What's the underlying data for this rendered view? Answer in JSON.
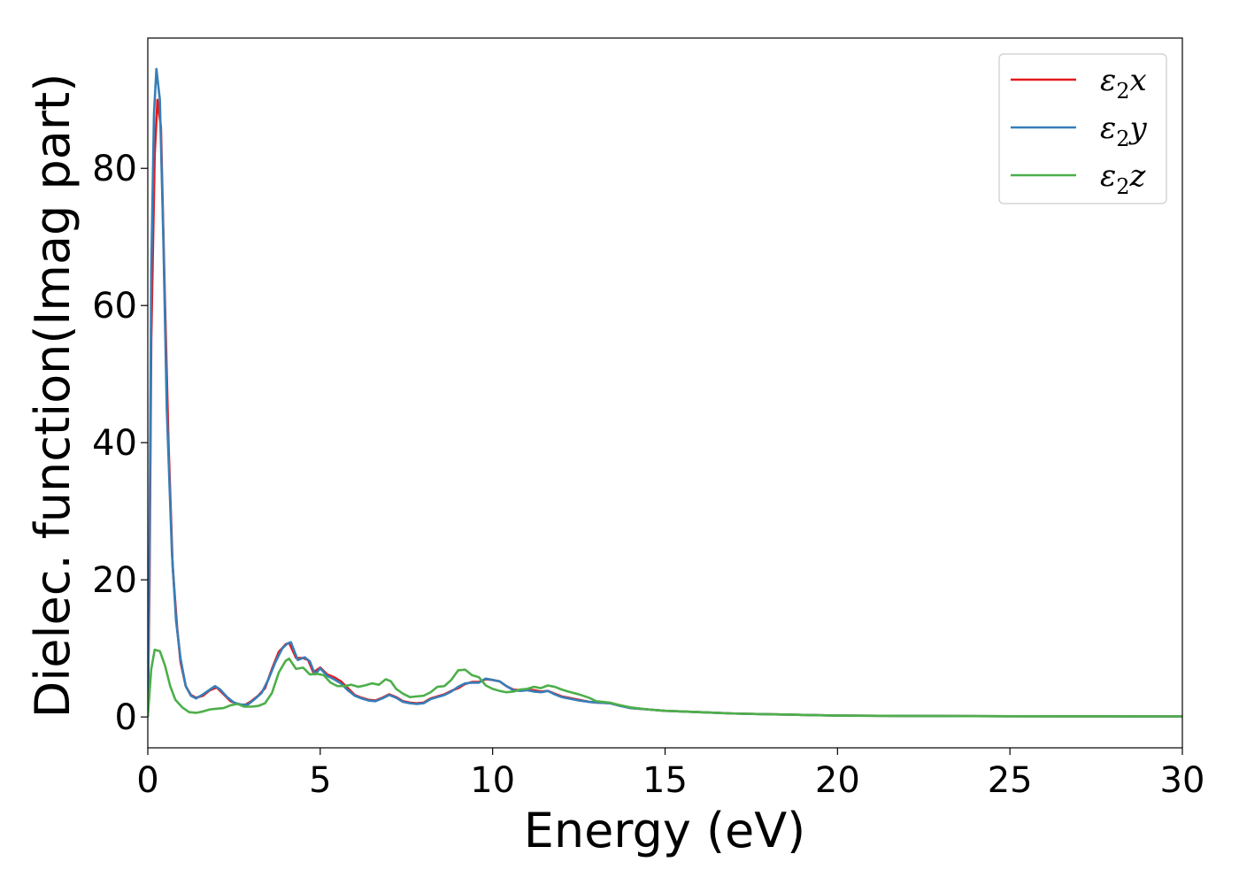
{
  "chart_data": {
    "type": "line",
    "title": "",
    "xlabel": "Energy (eV)",
    "ylabel": "Dielec. function(Imag part)",
    "xlim": [
      0,
      30
    ],
    "ylim": [
      -4.5,
      99
    ],
    "xticks": [
      0,
      5,
      10,
      15,
      20,
      25,
      30
    ],
    "yticks": [
      0,
      20,
      40,
      60,
      80
    ],
    "grid": false,
    "legend_position": "top-right",
    "series": [
      {
        "name": "ε2x",
        "legend": {
          "symbol": "ε",
          "sub": "2",
          "axis": "x"
        },
        "color": "#e41a1c",
        "points": [
          [
            0,
            0
          ],
          [
            0.05,
            20
          ],
          [
            0.1,
            55
          ],
          [
            0.2,
            82
          ],
          [
            0.28,
            90
          ],
          [
            0.38,
            86
          ],
          [
            0.5,
            60
          ],
          [
            0.6,
            40
          ],
          [
            0.72,
            22
          ],
          [
            0.85,
            13
          ],
          [
            0.95,
            8
          ],
          [
            1.1,
            4.5
          ],
          [
            1.25,
            3.2
          ],
          [
            1.4,
            2.8
          ],
          [
            1.6,
            3.1
          ],
          [
            1.8,
            3.9
          ],
          [
            2.0,
            4.3
          ],
          [
            2.2,
            3.3
          ],
          [
            2.4,
            2.3
          ],
          [
            2.6,
            1.9
          ],
          [
            2.8,
            1.7
          ],
          [
            3.0,
            2.3
          ],
          [
            3.2,
            3.1
          ],
          [
            3.4,
            4.2
          ],
          [
            3.6,
            7
          ],
          [
            3.8,
            9.5
          ],
          [
            4.0,
            10.6
          ],
          [
            4.1,
            10.8
          ],
          [
            4.3,
            8.6
          ],
          [
            4.5,
            8.6
          ],
          [
            4.65,
            8.3
          ],
          [
            4.8,
            6.5
          ],
          [
            5.0,
            7.2
          ],
          [
            5.2,
            6.2
          ],
          [
            5.4,
            5.8
          ],
          [
            5.6,
            5.2
          ],
          [
            5.8,
            4.2
          ],
          [
            6.0,
            3.2
          ],
          [
            6.2,
            2.8
          ],
          [
            6.4,
            2.5
          ],
          [
            6.6,
            2.4
          ],
          [
            6.8,
            2.8
          ],
          [
            7.0,
            3.3
          ],
          [
            7.2,
            2.9
          ],
          [
            7.4,
            2.3
          ],
          [
            7.6,
            2.1
          ],
          [
            7.8,
            2.0
          ],
          [
            8.0,
            2.1
          ],
          [
            8.2,
            2.7
          ],
          [
            8.4,
            3.0
          ],
          [
            8.6,
            3.3
          ],
          [
            8.8,
            3.8
          ],
          [
            9.0,
            4.2
          ],
          [
            9.2,
            4.8
          ],
          [
            9.4,
            5.1
          ],
          [
            9.6,
            5.1
          ],
          [
            9.8,
            5.5
          ],
          [
            10.0,
            5.4
          ],
          [
            10.2,
            5.2
          ],
          [
            10.4,
            4.5
          ],
          [
            10.6,
            4.0
          ],
          [
            10.8,
            3.9
          ],
          [
            11.0,
            4.0
          ],
          [
            11.2,
            3.9
          ],
          [
            11.4,
            3.7
          ],
          [
            11.6,
            3.8
          ],
          [
            11.8,
            3.4
          ],
          [
            12.0,
            3.0
          ],
          [
            12.2,
            2.8
          ],
          [
            12.5,
            2.5
          ],
          [
            12.8,
            2.2
          ],
          [
            13.0,
            2.1
          ],
          [
            13.4,
            2.0
          ],
          [
            13.7,
            1.7
          ],
          [
            14.0,
            1.3
          ],
          [
            14.5,
            1.1
          ],
          [
            15.0,
            0.9
          ],
          [
            15.5,
            0.8
          ],
          [
            16.0,
            0.7
          ],
          [
            17.0,
            0.5
          ],
          [
            18.0,
            0.4
          ],
          [
            19.0,
            0.3
          ],
          [
            20.0,
            0.2
          ],
          [
            22.0,
            0.15
          ],
          [
            25.0,
            0.1
          ],
          [
            30.0,
            0.08
          ]
        ]
      },
      {
        "name": "ε2y",
        "legend": {
          "symbol": "ε",
          "sub": "2",
          "axis": "y"
        },
        "color": "#377eb8",
        "points": [
          [
            0,
            0
          ],
          [
            0.05,
            25
          ],
          [
            0.1,
            65
          ],
          [
            0.18,
            88
          ],
          [
            0.25,
            94.5
          ],
          [
            0.35,
            90
          ],
          [
            0.45,
            70
          ],
          [
            0.55,
            45
          ],
          [
            0.7,
            24
          ],
          [
            0.82,
            14
          ],
          [
            0.95,
            8.5
          ],
          [
            1.1,
            4.5
          ],
          [
            1.25,
            3.1
          ],
          [
            1.4,
            2.7
          ],
          [
            1.6,
            3.3
          ],
          [
            1.8,
            4.0
          ],
          [
            1.95,
            4.5
          ],
          [
            2.1,
            4.0
          ],
          [
            2.3,
            2.9
          ],
          [
            2.5,
            2.1
          ],
          [
            2.7,
            1.8
          ],
          [
            2.9,
            1.8
          ],
          [
            3.1,
            2.6
          ],
          [
            3.3,
            3.5
          ],
          [
            3.5,
            5.5
          ],
          [
            3.7,
            8
          ],
          [
            3.9,
            10
          ],
          [
            4.05,
            10.7
          ],
          [
            4.15,
            10.9
          ],
          [
            4.35,
            8.3
          ],
          [
            4.55,
            8.7
          ],
          [
            4.7,
            8.1
          ],
          [
            4.85,
            6.2
          ],
          [
            5.0,
            7.1
          ],
          [
            5.2,
            6.0
          ],
          [
            5.4,
            5.5
          ],
          [
            5.6,
            4.9
          ],
          [
            5.8,
            3.9
          ],
          [
            6.0,
            3.1
          ],
          [
            6.2,
            2.7
          ],
          [
            6.4,
            2.4
          ],
          [
            6.6,
            2.3
          ],
          [
            6.8,
            2.7
          ],
          [
            7.0,
            3.2
          ],
          [
            7.2,
            2.8
          ],
          [
            7.4,
            2.2
          ],
          [
            7.6,
            2.0
          ],
          [
            7.8,
            1.9
          ],
          [
            8.0,
            2.0
          ],
          [
            8.2,
            2.6
          ],
          [
            8.4,
            2.9
          ],
          [
            8.6,
            3.2
          ],
          [
            8.8,
            3.7
          ],
          [
            9.0,
            4.4
          ],
          [
            9.2,
            4.9
          ],
          [
            9.4,
            5.0
          ],
          [
            9.6,
            5.0
          ],
          [
            9.8,
            5.6
          ],
          [
            10.0,
            5.4
          ],
          [
            10.2,
            5.2
          ],
          [
            10.4,
            4.5
          ],
          [
            10.6,
            3.9
          ],
          [
            10.8,
            3.8
          ],
          [
            11.0,
            3.9
          ],
          [
            11.2,
            3.7
          ],
          [
            11.4,
            3.6
          ],
          [
            11.6,
            3.8
          ],
          [
            11.8,
            3.3
          ],
          [
            12.0,
            2.9
          ],
          [
            12.2,
            2.7
          ],
          [
            12.5,
            2.4
          ],
          [
            12.8,
            2.2
          ],
          [
            13.0,
            2.1
          ],
          [
            13.4,
            2.0
          ],
          [
            13.7,
            1.6
          ],
          [
            14.0,
            1.3
          ],
          [
            14.5,
            1.1
          ],
          [
            15.0,
            0.9
          ],
          [
            15.5,
            0.8
          ],
          [
            16.0,
            0.7
          ],
          [
            17.0,
            0.5
          ],
          [
            18.0,
            0.4
          ],
          [
            19.0,
            0.3
          ],
          [
            20.0,
            0.2
          ],
          [
            22.0,
            0.15
          ],
          [
            25.0,
            0.1
          ],
          [
            30.0,
            0.08
          ]
        ]
      },
      {
        "name": "ε2z",
        "legend": {
          "symbol": "ε",
          "sub": "2",
          "axis": "z"
        },
        "color": "#4daf4a",
        "points": [
          [
            0,
            0
          ],
          [
            0.1,
            7
          ],
          [
            0.2,
            9.8
          ],
          [
            0.35,
            9.6
          ],
          [
            0.5,
            7.5
          ],
          [
            0.65,
            4.5
          ],
          [
            0.8,
            2.5
          ],
          [
            1.0,
            1.4
          ],
          [
            1.2,
            0.7
          ],
          [
            1.4,
            0.6
          ],
          [
            1.6,
            0.8
          ],
          [
            1.8,
            1.1
          ],
          [
            2.0,
            1.2
          ],
          [
            2.2,
            1.3
          ],
          [
            2.4,
            1.7
          ],
          [
            2.6,
            1.9
          ],
          [
            2.8,
            1.5
          ],
          [
            3.0,
            1.5
          ],
          [
            3.2,
            1.6
          ],
          [
            3.4,
            2.0
          ],
          [
            3.6,
            3.5
          ],
          [
            3.8,
            6.5
          ],
          [
            4.0,
            8.2
          ],
          [
            4.1,
            8.5
          ],
          [
            4.3,
            7.0
          ],
          [
            4.5,
            7.2
          ],
          [
            4.7,
            6.2
          ],
          [
            4.9,
            6.3
          ],
          [
            5.1,
            6.1
          ],
          [
            5.3,
            5.0
          ],
          [
            5.5,
            4.5
          ],
          [
            5.7,
            4.5
          ],
          [
            5.9,
            4.7
          ],
          [
            6.1,
            4.4
          ],
          [
            6.3,
            4.6
          ],
          [
            6.5,
            4.9
          ],
          [
            6.7,
            4.7
          ],
          [
            6.9,
            5.5
          ],
          [
            7.05,
            5.2
          ],
          [
            7.2,
            4.1
          ],
          [
            7.4,
            3.4
          ],
          [
            7.6,
            2.9
          ],
          [
            7.8,
            3.0
          ],
          [
            8.0,
            3.1
          ],
          [
            8.2,
            3.6
          ],
          [
            8.4,
            4.4
          ],
          [
            8.6,
            4.5
          ],
          [
            8.8,
            5.4
          ],
          [
            9.0,
            6.8
          ],
          [
            9.2,
            6.9
          ],
          [
            9.4,
            6.1
          ],
          [
            9.6,
            5.8
          ],
          [
            9.8,
            4.6
          ],
          [
            10.0,
            4.1
          ],
          [
            10.2,
            3.8
          ],
          [
            10.4,
            3.6
          ],
          [
            10.6,
            3.7
          ],
          [
            10.8,
            4.0
          ],
          [
            11.0,
            4.1
          ],
          [
            11.2,
            4.4
          ],
          [
            11.4,
            4.2
          ],
          [
            11.6,
            4.6
          ],
          [
            11.8,
            4.4
          ],
          [
            12.0,
            4.0
          ],
          [
            12.2,
            3.7
          ],
          [
            12.5,
            3.3
          ],
          [
            12.8,
            2.8
          ],
          [
            13.0,
            2.3
          ],
          [
            13.4,
            2.1
          ],
          [
            13.7,
            1.7
          ],
          [
            14.0,
            1.4
          ],
          [
            14.5,
            1.1
          ],
          [
            15.0,
            0.9
          ],
          [
            15.5,
            0.8
          ],
          [
            16.0,
            0.7
          ],
          [
            17.0,
            0.5
          ],
          [
            18.0,
            0.4
          ],
          [
            19.0,
            0.3
          ],
          [
            20.0,
            0.2
          ],
          [
            22.0,
            0.15
          ],
          [
            25.0,
            0.1
          ],
          [
            30.0,
            0.08
          ]
        ]
      }
    ]
  }
}
